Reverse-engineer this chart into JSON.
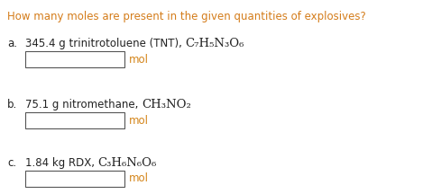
{
  "title": "How many moles are present in the given quantities of explosives?",
  "title_color": "#D47C1A",
  "background_color": "#ffffff",
  "items": [
    {
      "label": "a.",
      "text_plain": "345.4 g trinitrotoluene (TNT), ",
      "formula": "C₇H₅N₃O₆",
      "text_color": "#222222",
      "formula_color": "#222222"
    },
    {
      "label": "b.",
      "text_plain": "75.1 g nitromethane, ",
      "formula": "CH₃NO₂",
      "text_color": "#222222",
      "formula_color": "#222222"
    },
    {
      "label": "c.",
      "text_plain": "1.84 kg RDX, ",
      "formula": "C₃H₆N₆O₆",
      "text_color": "#222222",
      "formula_color": "#222222"
    }
  ],
  "mol_label": "mol",
  "mol_color": "#D4851A",
  "box_color": "#ffffff",
  "box_edge_color": "#555555",
  "label_color": "#222222",
  "figsize": [
    4.79,
    2.16
  ],
  "dpi": 100
}
